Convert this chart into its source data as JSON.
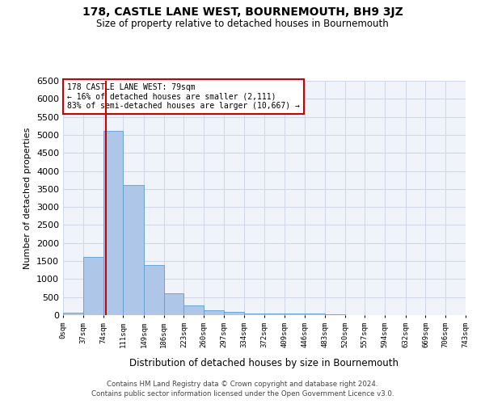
{
  "title": "178, CASTLE LANE WEST, BOURNEMOUTH, BH9 3JZ",
  "subtitle": "Size of property relative to detached houses in Bournemouth",
  "xlabel": "Distribution of detached houses by size in Bournemouth",
  "ylabel": "Number of detached properties",
  "footer_line1": "Contains HM Land Registry data © Crown copyright and database right 2024.",
  "footer_line2": "Contains public sector information licensed under the Open Government Licence v3.0.",
  "annotation_title": "178 CASTLE LANE WEST: 79sqm",
  "annotation_line1": "← 16% of detached houses are smaller (2,111)",
  "annotation_line2": "83% of semi-detached houses are larger (10,667) →",
  "property_size": 79,
  "bar_edges": [
    0,
    37,
    74,
    111,
    149,
    186,
    223,
    260,
    297,
    334,
    372,
    409,
    446,
    483,
    520,
    557,
    594,
    632,
    669,
    706,
    743
  ],
  "bar_heights": [
    75,
    1620,
    5100,
    3600,
    1400,
    600,
    280,
    130,
    80,
    55,
    50,
    50,
    50,
    20,
    10,
    5,
    5,
    3,
    2,
    2
  ],
  "bar_color": "#aec6e8",
  "bar_edge_color": "#5a9fd4",
  "grid_color": "#d0d8e8",
  "background_color": "#f0f4fa",
  "red_line_color": "#cc0000",
  "annotation_box_color": "#cc0000",
  "ylim": [
    0,
    6500
  ],
  "yticks": [
    0,
    500,
    1000,
    1500,
    2000,
    2500,
    3000,
    3500,
    4000,
    4500,
    5000,
    5500,
    6000,
    6500
  ]
}
